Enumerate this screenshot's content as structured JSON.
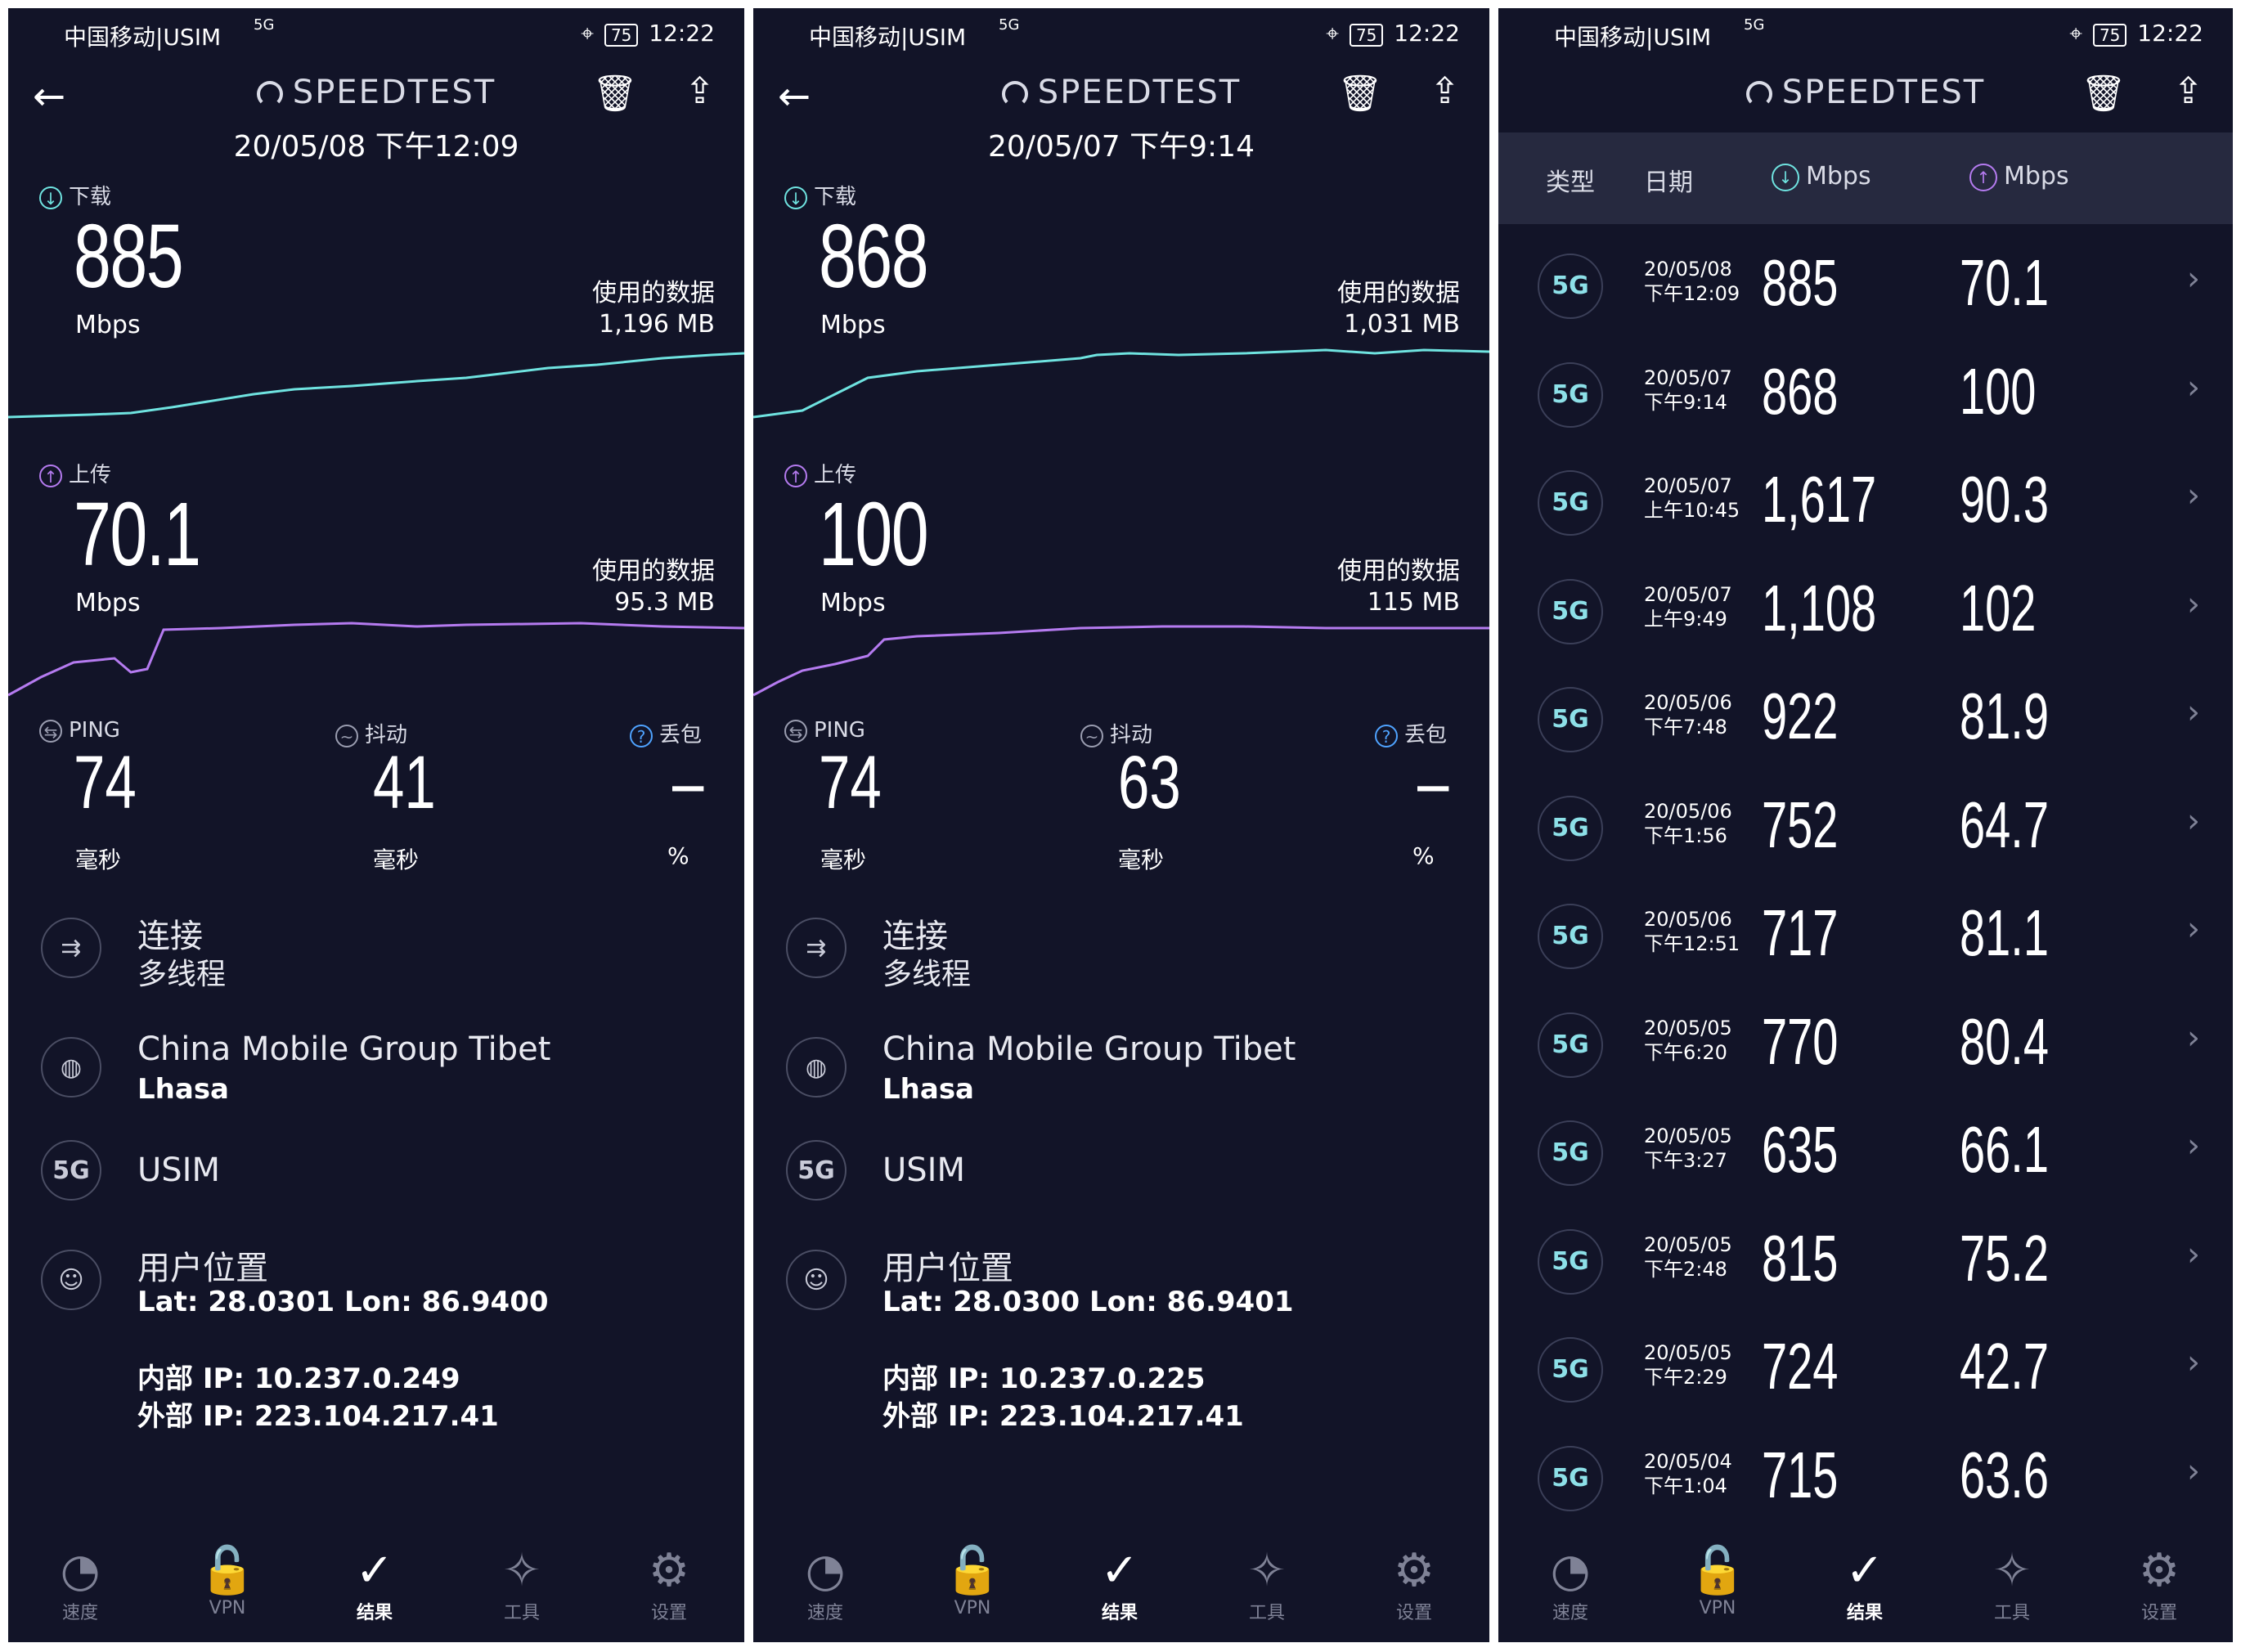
{
  "status": {
    "carrier": "中国移动|USIM",
    "signal": "5G",
    "time": "12:22",
    "battery": "75"
  },
  "app": {
    "title": "SPEEDTEST"
  },
  "results": [
    {
      "date": "20/05/08 下午12:09",
      "download": {
        "label": "下载",
        "value": "885",
        "unit": "Mbps",
        "data_label": "使用的数据",
        "data": "1,196 MB"
      },
      "upload": {
        "label": "上传",
        "value": "70.1",
        "unit": "Mbps",
        "data_label": "使用的数据",
        "data": "95.3 MB"
      },
      "ping": {
        "label": "PING",
        "value": "74",
        "unit": "毫秒"
      },
      "jitter": {
        "label": "抖动",
        "value": "41",
        "unit": "毫秒"
      },
      "loss": {
        "label": "丢包",
        "value": "–",
        "unit": "%"
      },
      "connection": {
        "title": "连接",
        "sub": "多线程"
      },
      "server": {
        "title": "China Mobile Group Tibet",
        "sub": "Lhasa"
      },
      "network": {
        "badge": "5G",
        "title": "USIM"
      },
      "location": {
        "title": "用户位置",
        "sub": "Lat: 28.0301 Lon: 86.9400"
      },
      "internal_ip": "内部 IP: 10.237.0.249",
      "external_ip": "外部 IP: 223.104.217.41"
    },
    {
      "date": "20/05/07 下午9:14",
      "download": {
        "label": "下载",
        "value": "868",
        "unit": "Mbps",
        "data_label": "使用的数据",
        "data": "1,031 MB"
      },
      "upload": {
        "label": "上传",
        "value": "100",
        "unit": "Mbps",
        "data_label": "使用的数据",
        "data": "115 MB"
      },
      "ping": {
        "label": "PING",
        "value": "74",
        "unit": "毫秒"
      },
      "jitter": {
        "label": "抖动",
        "value": "63",
        "unit": "毫秒"
      },
      "loss": {
        "label": "丢包",
        "value": "–",
        "unit": "%"
      },
      "connection": {
        "title": "连接",
        "sub": "多线程"
      },
      "server": {
        "title": "China Mobile Group Tibet",
        "sub": "Lhasa"
      },
      "network": {
        "badge": "5G",
        "title": "USIM"
      },
      "location": {
        "title": "用户位置",
        "sub": "Lat: 28.0300 Lon: 86.9401"
      },
      "internal_ip": "内部 IP: 10.237.0.225",
      "external_ip": "外部 IP: 223.104.217.41"
    }
  ],
  "history": {
    "headers": {
      "type": "类型",
      "date": "日期",
      "down": "Mbps",
      "up": "Mbps"
    },
    "rows": [
      {
        "type": "5G",
        "date": "20/05/08",
        "time": "下午12:09",
        "down": "885",
        "up": "70.1"
      },
      {
        "type": "5G",
        "date": "20/05/07",
        "time": "下午9:14",
        "down": "868",
        "up": "100"
      },
      {
        "type": "5G",
        "date": "20/05/07",
        "time": "上午10:45",
        "down": "1,617",
        "up": "90.3"
      },
      {
        "type": "5G",
        "date": "20/05/07",
        "time": "上午9:49",
        "down": "1,108",
        "up": "102"
      },
      {
        "type": "5G",
        "date": "20/05/06",
        "time": "下午7:48",
        "down": "922",
        "up": "81.9"
      },
      {
        "type": "5G",
        "date": "20/05/06",
        "time": "下午1:56",
        "down": "752",
        "up": "64.7"
      },
      {
        "type": "5G",
        "date": "20/05/06",
        "time": "下午12:51",
        "down": "717",
        "up": "81.1"
      },
      {
        "type": "5G",
        "date": "20/05/05",
        "time": "下午6:20",
        "down": "770",
        "up": "80.4"
      },
      {
        "type": "5G",
        "date": "20/05/05",
        "time": "下午3:27",
        "down": "635",
        "up": "66.1"
      },
      {
        "type": "5G",
        "date": "20/05/05",
        "time": "下午2:48",
        "down": "815",
        "up": "75.2"
      },
      {
        "type": "5G",
        "date": "20/05/05",
        "time": "下午2:29",
        "down": "724",
        "up": "42.7"
      },
      {
        "type": "5G",
        "date": "20/05/04",
        "time": "下午1:04",
        "down": "715",
        "up": "63.6"
      }
    ]
  },
  "nav": [
    {
      "label": "速度",
      "icon": "gauge-icon"
    },
    {
      "label": "VPN",
      "icon": "lock-icon"
    },
    {
      "label": "结果",
      "icon": "check-circle-icon",
      "active": true
    },
    {
      "label": "工具",
      "icon": "wand-icon"
    },
    {
      "label": "设置",
      "icon": "gear-icon"
    }
  ],
  "colors": {
    "bg": "#121428",
    "download": "#6fe3e0",
    "upload": "#b57bf0",
    "header_bg": "#26293f"
  }
}
